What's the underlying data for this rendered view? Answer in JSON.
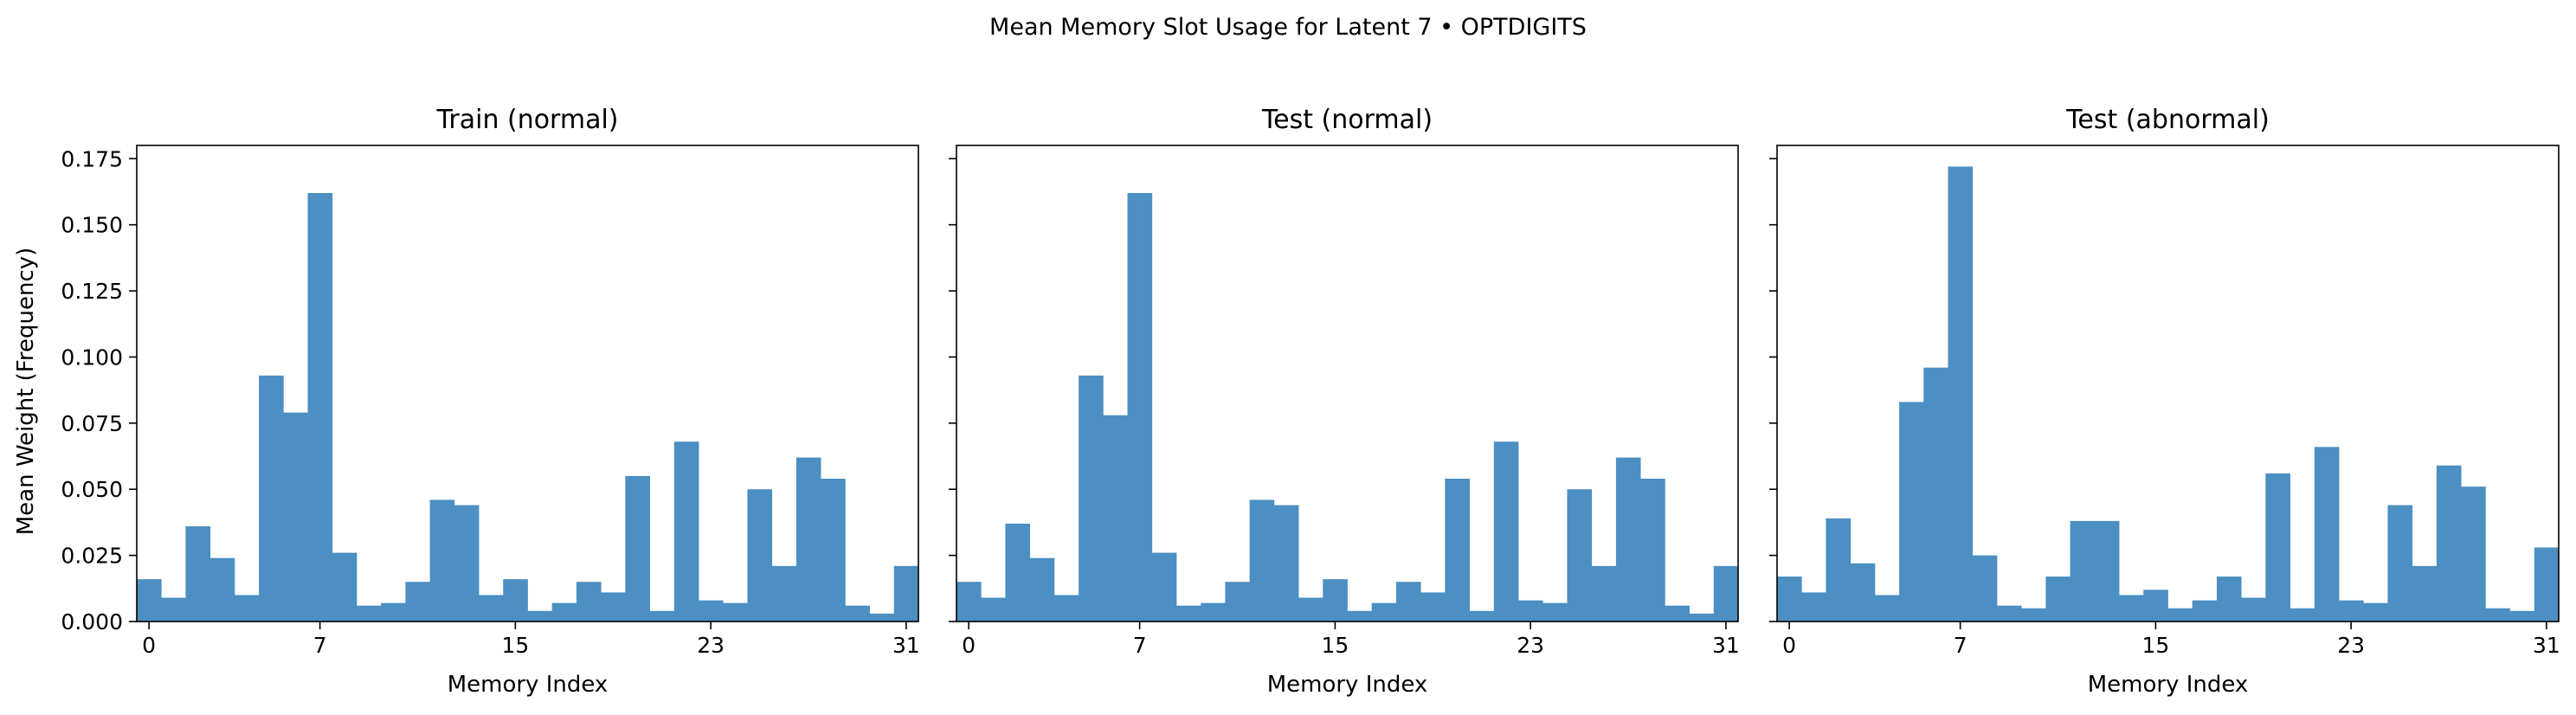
{
  "figure": {
    "suptitle": "Mean Memory Slot Usage for Latent 7 • OPTDIGITS",
    "ylabel": "Mean Weight (Frequency)",
    "bar_color": "#4c8fc2"
  },
  "chart_data": [
    {
      "type": "bar",
      "title": "Train (normal)",
      "xlabel": "Memory Index",
      "ylabel": "Mean Weight (Frequency)",
      "xlim": [
        -0.5,
        31.5
      ],
      "ylim": [
        0,
        0.18
      ],
      "xticks": [
        0,
        7,
        15,
        23,
        31
      ],
      "yticks": [
        "0.000",
        "0.025",
        "0.050",
        "0.075",
        "0.100",
        "0.125",
        "0.150",
        "0.175"
      ],
      "categories": [
        0,
        1,
        2,
        3,
        4,
        5,
        6,
        7,
        8,
        9,
        10,
        11,
        12,
        13,
        14,
        15,
        16,
        17,
        18,
        19,
        20,
        21,
        22,
        23,
        24,
        25,
        26,
        27,
        28,
        29,
        30,
        31
      ],
      "values": [
        0.016,
        0.009,
        0.036,
        0.024,
        0.01,
        0.093,
        0.079,
        0.162,
        0.026,
        0.006,
        0.007,
        0.015,
        0.046,
        0.044,
        0.01,
        0.016,
        0.004,
        0.007,
        0.015,
        0.011,
        0.055,
        0.004,
        0.068,
        0.008,
        0.007,
        0.05,
        0.021,
        0.062,
        0.054,
        0.006,
        0.003,
        0.021
      ]
    },
    {
      "type": "bar",
      "title": "Test (normal)",
      "xlabel": "Memory Index",
      "xlim": [
        -0.5,
        31.5
      ],
      "ylim": [
        0,
        0.18
      ],
      "xticks": [
        0,
        7,
        15,
        23,
        31
      ],
      "categories": [
        0,
        1,
        2,
        3,
        4,
        5,
        6,
        7,
        8,
        9,
        10,
        11,
        12,
        13,
        14,
        15,
        16,
        17,
        18,
        19,
        20,
        21,
        22,
        23,
        24,
        25,
        26,
        27,
        28,
        29,
        30,
        31
      ],
      "values": [
        0.015,
        0.009,
        0.037,
        0.024,
        0.01,
        0.093,
        0.078,
        0.162,
        0.026,
        0.006,
        0.007,
        0.015,
        0.046,
        0.044,
        0.009,
        0.016,
        0.004,
        0.007,
        0.015,
        0.011,
        0.054,
        0.004,
        0.068,
        0.008,
        0.007,
        0.05,
        0.021,
        0.062,
        0.054,
        0.006,
        0.003,
        0.021
      ]
    },
    {
      "type": "bar",
      "title": "Test (abnormal)",
      "xlabel": "Memory Index",
      "xlim": [
        -0.5,
        31.5
      ],
      "ylim": [
        0,
        0.18
      ],
      "xticks": [
        0,
        7,
        15,
        23,
        31
      ],
      "categories": [
        0,
        1,
        2,
        3,
        4,
        5,
        6,
        7,
        8,
        9,
        10,
        11,
        12,
        13,
        14,
        15,
        16,
        17,
        18,
        19,
        20,
        21,
        22,
        23,
        24,
        25,
        26,
        27,
        28,
        29,
        30,
        31
      ],
      "values": [
        0.017,
        0.011,
        0.039,
        0.022,
        0.01,
        0.083,
        0.096,
        0.172,
        0.025,
        0.006,
        0.005,
        0.017,
        0.038,
        0.038,
        0.01,
        0.012,
        0.005,
        0.008,
        0.017,
        0.009,
        0.056,
        0.005,
        0.066,
        0.008,
        0.007,
        0.044,
        0.021,
        0.059,
        0.051,
        0.005,
        0.004,
        0.028
      ]
    }
  ]
}
